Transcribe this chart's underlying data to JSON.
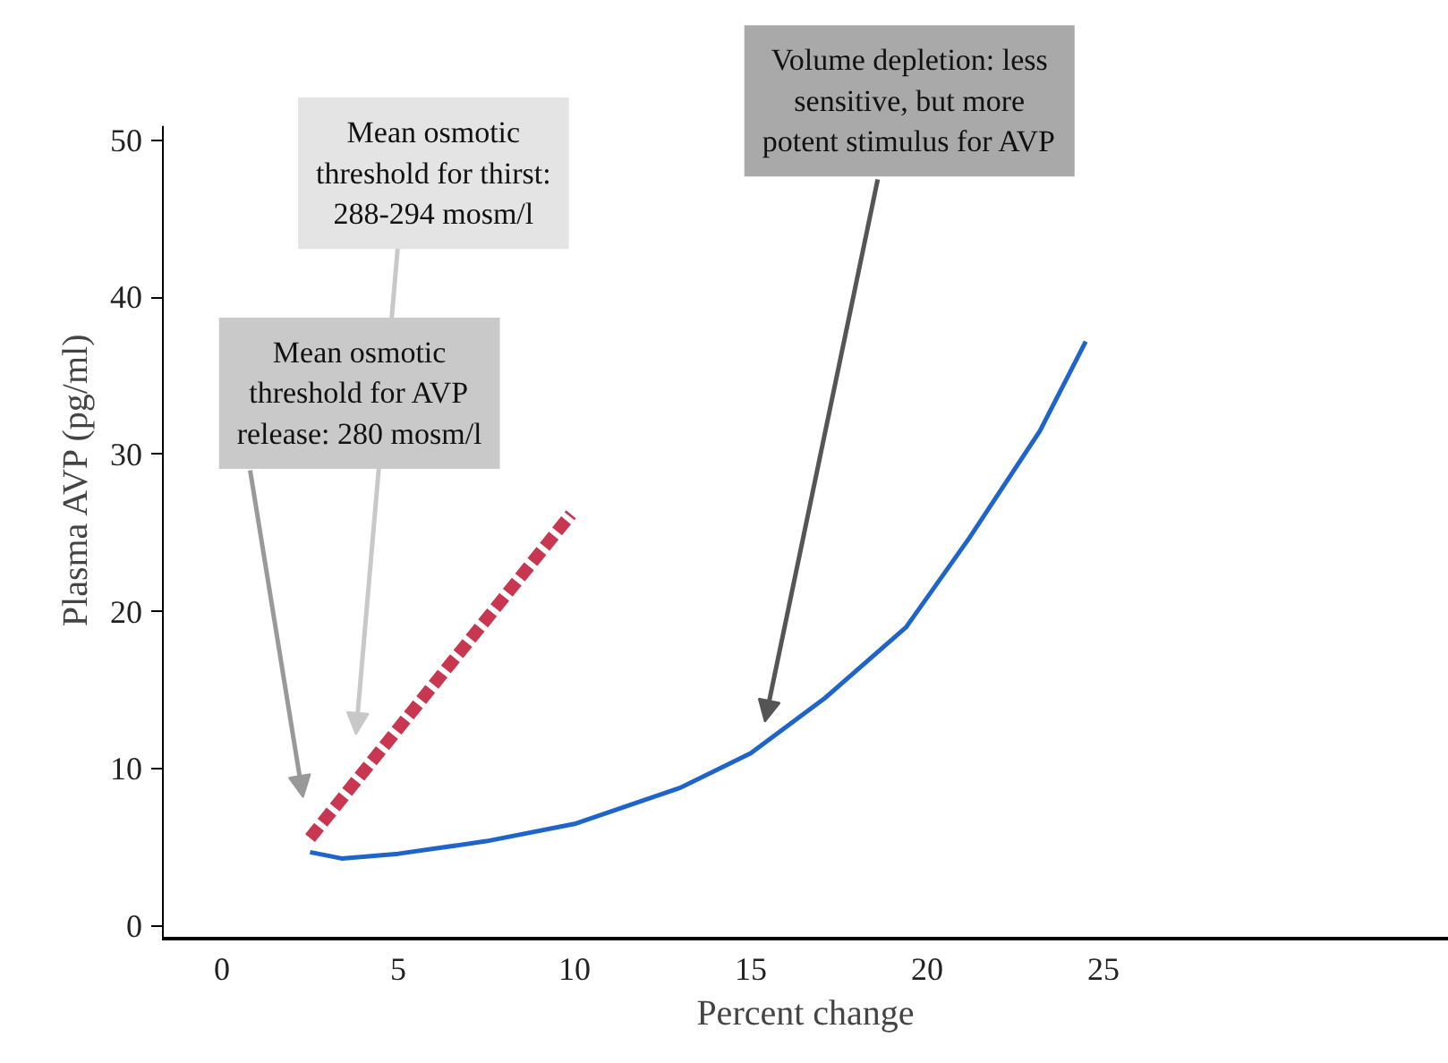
{
  "chart_data": {
    "type": "line",
    "xlabel": "Percent change",
    "ylabel": "Plasma AVP (pg/ml)",
    "xlim": [
      -1.7,
      34.8
    ],
    "ylim": [
      -0.8,
      50.9
    ],
    "xticks": [
      0,
      5,
      10,
      15,
      20,
      25
    ],
    "yticks": [
      0,
      10,
      20,
      30,
      40,
      50
    ],
    "grid": false,
    "series": [
      {
        "color": "#c8374f",
        "line_style": "dashed",
        "x": [
          2.5,
          9.9
        ],
        "values": [
          5.6,
          26.2
        ]
      },
      {
        "color": "#1f64c8",
        "line_style": "solid",
        "x": [
          2.5,
          3.4,
          5,
          7.5,
          10,
          13,
          15,
          17.1,
          19.4,
          21.2,
          23.2,
          24.5
        ],
        "values": [
          4.7,
          4.3,
          4.6,
          5.4,
          6.5,
          8.8,
          11,
          14.5,
          19,
          24.7,
          31.5,
          37.2
        ]
      }
    ],
    "annotations": [
      "Mean osmotic\nthreshold for AVP\nrelease: 280 mosm/l",
      "Mean osmotic\nthreshold for thirst:\n288-294 mosm/l",
      "Volume depletion: less\nsensitive, but more\npotent stimulus for AVP"
    ]
  }
}
